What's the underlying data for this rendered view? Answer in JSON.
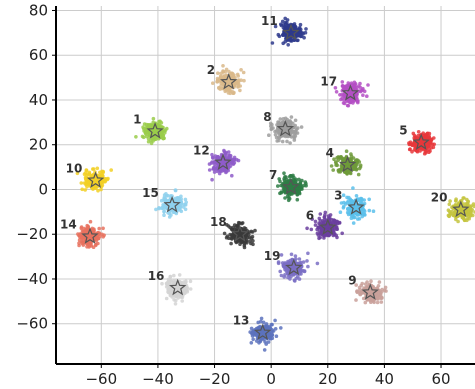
{
  "chart_data": {
    "type": "scatter",
    "title": "",
    "xlabel": "",
    "ylabel": "",
    "xlim": [
      -76,
      72
    ],
    "ylim": [
      -78,
      82
    ],
    "grid": true,
    "x_ticks": [
      -60,
      -40,
      -20,
      0,
      20,
      40,
      60
    ],
    "y_ticks": [
      80,
      60,
      40,
      20,
      0,
      -20,
      -40,
      -60
    ],
    "marker_center": "star",
    "clusters": [
      {
        "label": "1",
        "x": -41,
        "y": 26,
        "color": "#9acd4a"
      },
      {
        "label": "2",
        "x": -15,
        "y": 48,
        "color": "#d9b88a"
      },
      {
        "label": "3",
        "x": 30,
        "y": -8,
        "color": "#5bc0eb"
      },
      {
        "label": "4",
        "x": 27,
        "y": 11,
        "color": "#6e9a3a"
      },
      {
        "label": "5",
        "x": 53,
        "y": 21,
        "color": "#e8373b"
      },
      {
        "label": "6",
        "x": 20,
        "y": -17,
        "color": "#6a3e9e"
      },
      {
        "label": "7",
        "x": 7,
        "y": 1,
        "color": "#2e7d45"
      },
      {
        "label": "8",
        "x": 5,
        "y": 27,
        "color": "#9e9e9e"
      },
      {
        "label": "9",
        "x": 35,
        "y": -46,
        "color": "#c9a09a"
      },
      {
        "label": "10",
        "x": -62,
        "y": 4,
        "color": "#f2d026"
      },
      {
        "label": "11",
        "x": 7,
        "y": 70,
        "color": "#2e3a8c"
      },
      {
        "label": "12",
        "x": -17,
        "y": 12,
        "color": "#8e5cc9"
      },
      {
        "label": "13",
        "x": -3,
        "y": -64,
        "color": "#5c72bd"
      },
      {
        "label": "14",
        "x": -64,
        "y": -21,
        "color": "#e8715e"
      },
      {
        "label": "15",
        "x": -35,
        "y": -7,
        "color": "#8fd1ed"
      },
      {
        "label": "16",
        "x": -33,
        "y": -44,
        "color": "#d4d4d4"
      },
      {
        "label": "17",
        "x": 28,
        "y": 43,
        "color": "#b44fc4"
      },
      {
        "label": "18",
        "x": -11,
        "y": -20,
        "color": "#3a3a3a"
      },
      {
        "label": "19",
        "x": 8,
        "y": -35,
        "color": "#7a6fc4"
      },
      {
        "label": "20",
        "x": 67,
        "y": -9,
        "color": "#c4c43e"
      }
    ]
  }
}
